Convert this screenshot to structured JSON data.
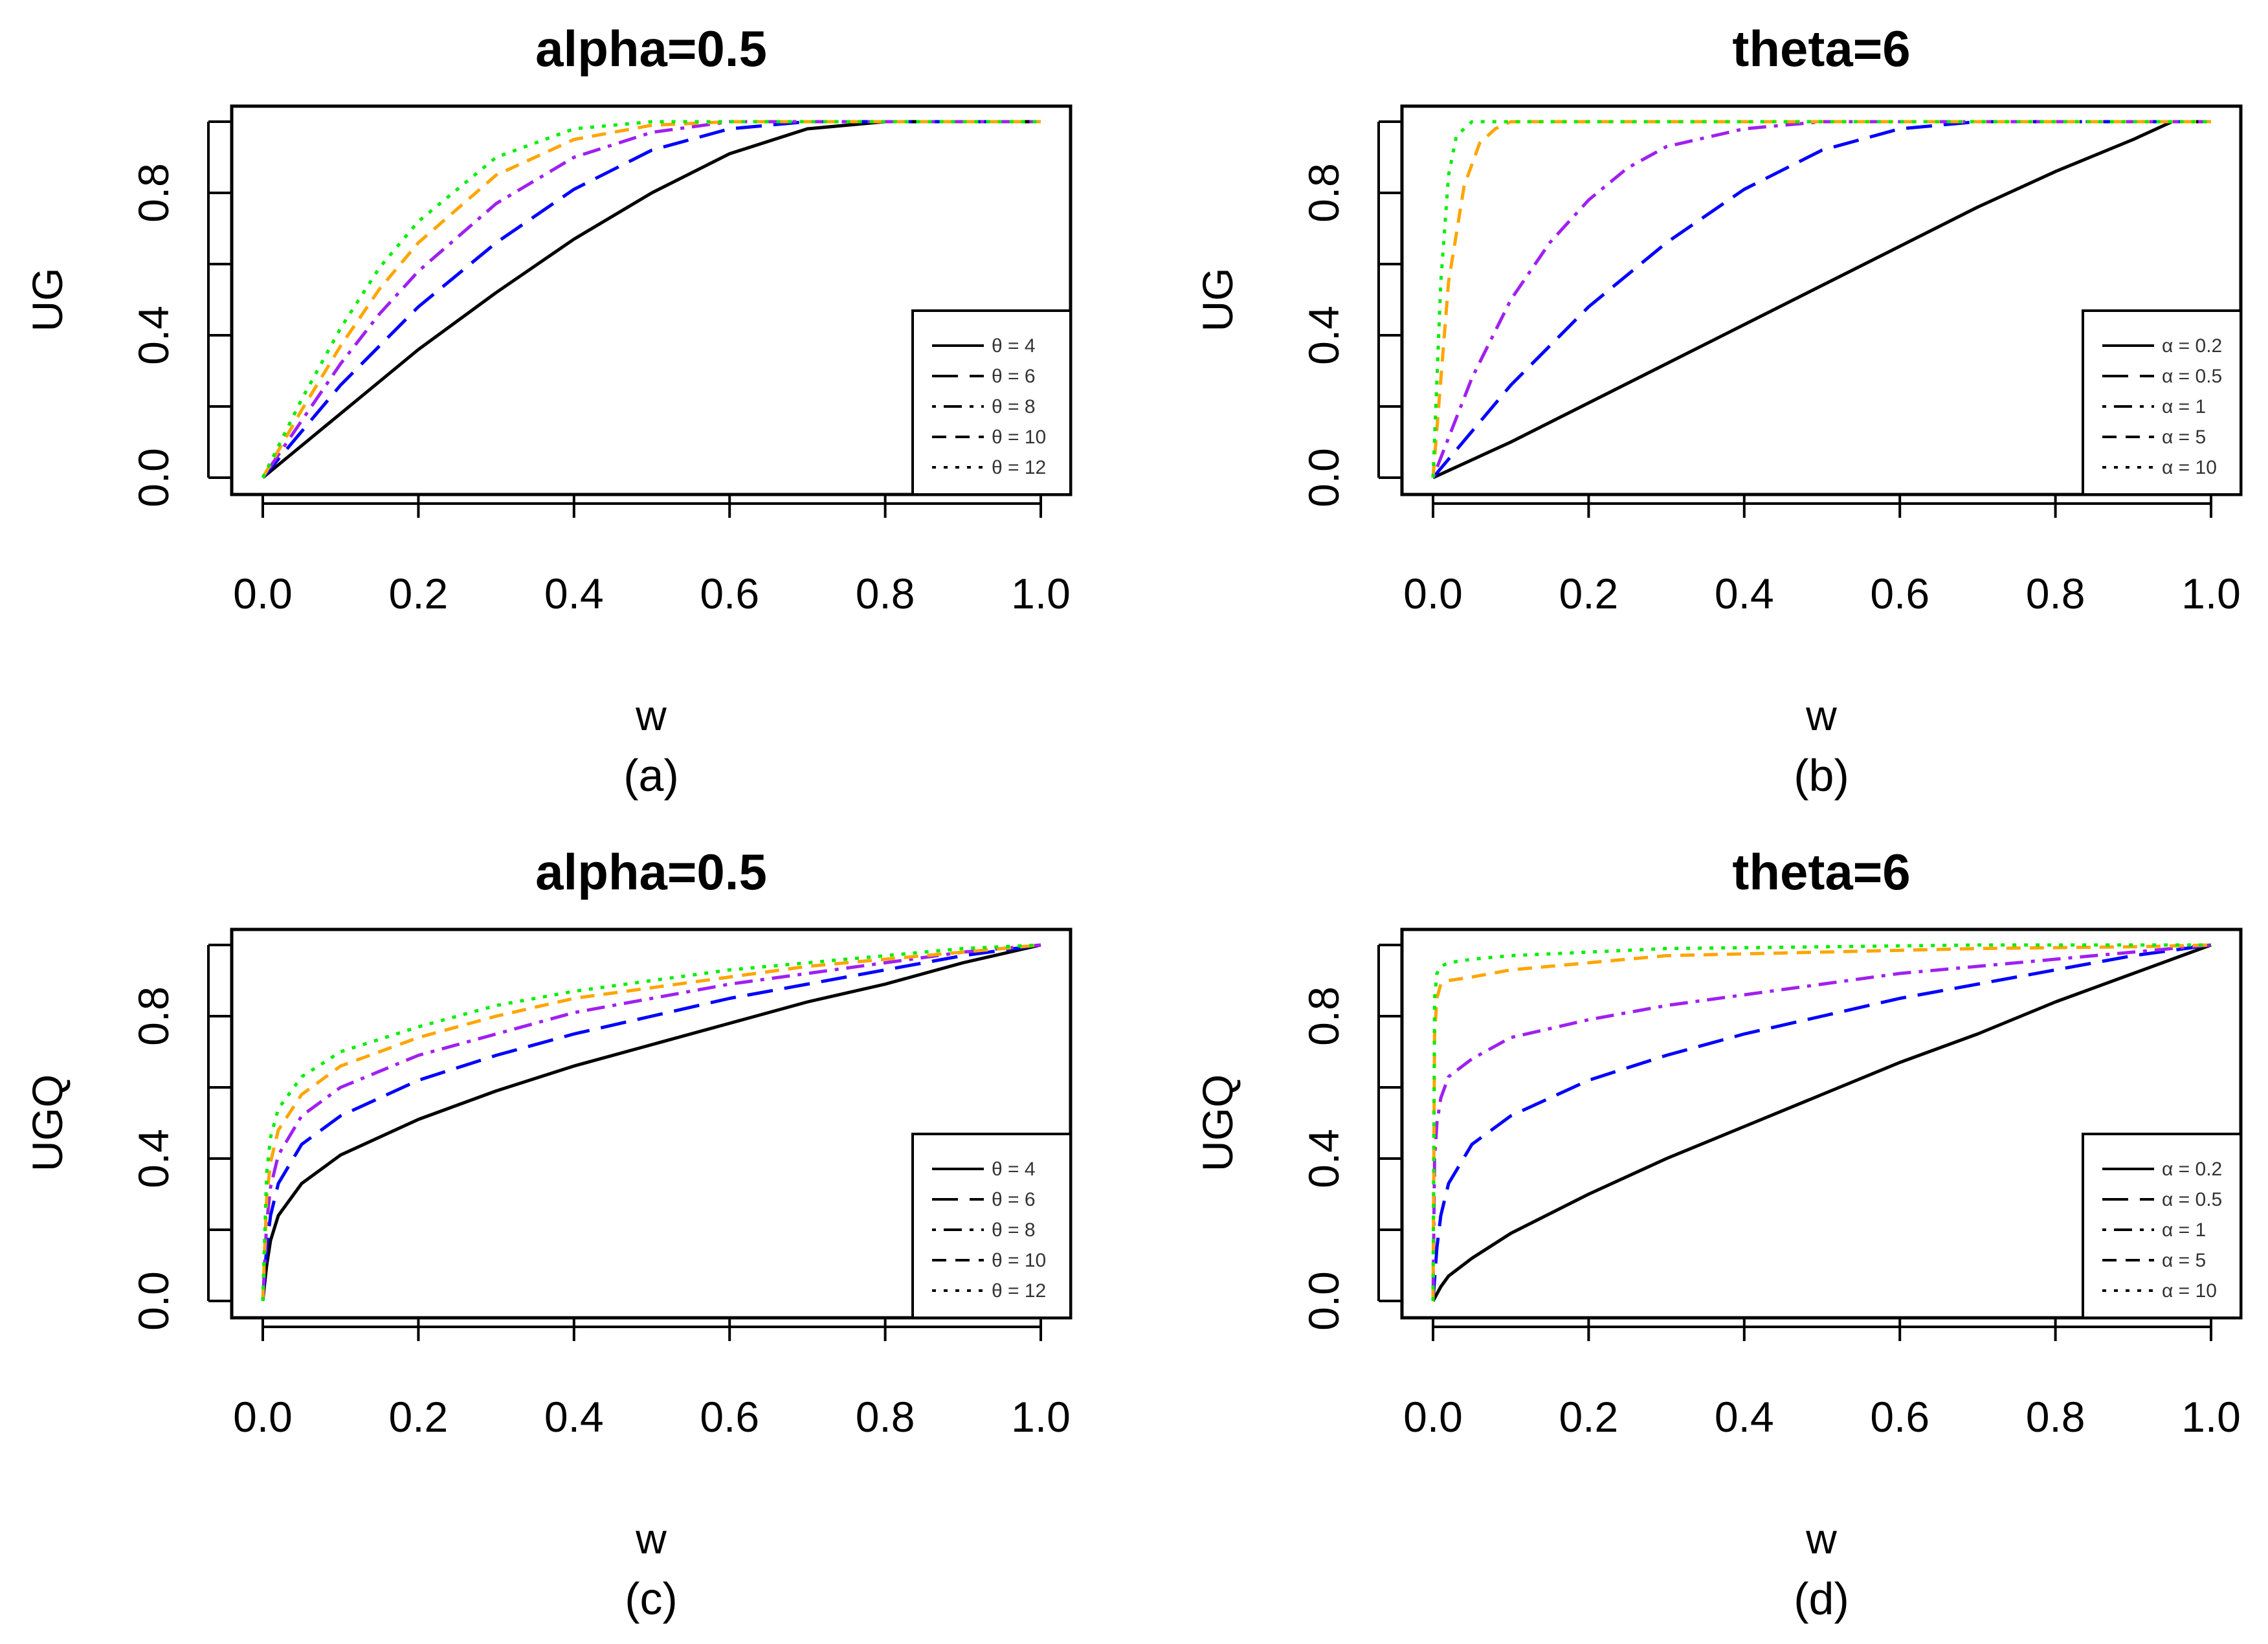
{
  "chart_data": [
    {
      "id": "a",
      "type": "line",
      "title": "alpha=0.5",
      "xlabel": "w",
      "ylabel": "UG",
      "caption": "(a)",
      "xlim": [
        0,
        1
      ],
      "ylim": [
        0,
        1
      ],
      "xticks": [
        "0.0",
        "0.2",
        "0.4",
        "0.6",
        "0.8",
        "1.0"
      ],
      "yticks": [
        "0.0",
        "0.4",
        "0.8"
      ],
      "legend_position": "bottom-right",
      "series": [
        {
          "name": "θ = 4",
          "color": "#000000",
          "dash": "solid",
          "x": [
            0,
            0.05,
            0.1,
            0.15,
            0.2,
            0.3,
            0.4,
            0.5,
            0.6,
            0.7,
            0.8,
            0.9,
            1.0
          ],
          "y": [
            0,
            0.09,
            0.18,
            0.27,
            0.36,
            0.52,
            0.67,
            0.8,
            0.91,
            0.98,
            1.0,
            1.0,
            1.0
          ]
        },
        {
          "name": "θ = 6",
          "color": "#0000ff",
          "dash": "longdash",
          "x": [
            0,
            0.05,
            0.1,
            0.15,
            0.2,
            0.3,
            0.4,
            0.5,
            0.6,
            0.7,
            0.8,
            0.9,
            1.0
          ],
          "y": [
            0,
            0.13,
            0.26,
            0.37,
            0.48,
            0.66,
            0.81,
            0.92,
            0.98,
            1.0,
            1.0,
            1.0,
            1.0
          ]
        },
        {
          "name": "θ = 8",
          "color": "#a020f0",
          "dash": "dotdash",
          "x": [
            0,
            0.05,
            0.1,
            0.15,
            0.2,
            0.3,
            0.4,
            0.5,
            0.6,
            0.7,
            0.8,
            0.9,
            1.0
          ],
          "y": [
            0,
            0.16,
            0.32,
            0.46,
            0.58,
            0.77,
            0.9,
            0.97,
            1.0,
            1.0,
            1.0,
            1.0,
            1.0
          ]
        },
        {
          "name": "θ = 10",
          "color": "#ffa500",
          "dash": "dashed",
          "x": [
            0,
            0.05,
            0.1,
            0.15,
            0.2,
            0.3,
            0.4,
            0.5,
            0.6,
            0.7,
            0.8,
            0.9,
            1.0
          ],
          "y": [
            0,
            0.19,
            0.37,
            0.53,
            0.66,
            0.85,
            0.95,
            0.99,
            1.0,
            1.0,
            1.0,
            1.0,
            1.0
          ]
        },
        {
          "name": "θ = 12",
          "color": "#00ee00",
          "dash": "dotted",
          "x": [
            0,
            0.05,
            0.1,
            0.15,
            0.2,
            0.3,
            0.4,
            0.5,
            0.6,
            0.7,
            0.8,
            0.9,
            1.0
          ],
          "y": [
            0,
            0.22,
            0.42,
            0.59,
            0.72,
            0.9,
            0.98,
            1.0,
            1.0,
            1.0,
            1.0,
            1.0,
            1.0
          ]
        }
      ]
    },
    {
      "id": "b",
      "type": "line",
      "title": "theta=6",
      "xlabel": "w",
      "ylabel": "UG",
      "caption": "(b)",
      "xlim": [
        0,
        1
      ],
      "ylim": [
        0,
        1
      ],
      "xticks": [
        "0.0",
        "0.2",
        "0.4",
        "0.6",
        "0.8",
        "1.0"
      ],
      "yticks": [
        "0.0",
        "0.4",
        "0.8"
      ],
      "legend_position": "bottom-right",
      "series": [
        {
          "name": "α = 0.2",
          "color": "#000000",
          "dash": "solid",
          "x": [
            0,
            0.1,
            0.2,
            0.3,
            0.4,
            0.5,
            0.6,
            0.7,
            0.8,
            0.9,
            0.95,
            1.0
          ],
          "y": [
            0,
            0.1,
            0.21,
            0.32,
            0.43,
            0.54,
            0.65,
            0.76,
            0.86,
            0.95,
            1.0,
            1.0
          ]
        },
        {
          "name": "α = 0.5",
          "color": "#0000ff",
          "dash": "longdash",
          "x": [
            0,
            0.05,
            0.1,
            0.15,
            0.2,
            0.3,
            0.4,
            0.5,
            0.6,
            0.7,
            0.8,
            0.9,
            1.0
          ],
          "y": [
            0,
            0.13,
            0.26,
            0.37,
            0.48,
            0.66,
            0.81,
            0.92,
            0.98,
            1.0,
            1.0,
            1.0,
            1.0
          ]
        },
        {
          "name": "α = 1",
          "color": "#a020f0",
          "dash": "dotdash",
          "x": [
            0,
            0.05,
            0.1,
            0.15,
            0.2,
            0.25,
            0.3,
            0.4,
            0.5,
            0.6,
            0.8,
            1.0
          ],
          "y": [
            0,
            0.28,
            0.5,
            0.66,
            0.78,
            0.87,
            0.93,
            0.98,
            1.0,
            1.0,
            1.0,
            1.0
          ]
        },
        {
          "name": "α = 5",
          "color": "#ffa500",
          "dash": "dashed",
          "x": [
            0,
            0.02,
            0.04,
            0.06,
            0.08,
            0.1,
            0.2,
            0.5,
            1.0
          ],
          "y": [
            0,
            0.55,
            0.82,
            0.94,
            0.98,
            1.0,
            1.0,
            1.0,
            1.0
          ]
        },
        {
          "name": "α = 10",
          "color": "#00ee00",
          "dash": "dotted",
          "x": [
            0,
            0.01,
            0.02,
            0.03,
            0.05,
            0.1,
            0.5,
            1.0
          ],
          "y": [
            0,
            0.55,
            0.85,
            0.96,
            1.0,
            1.0,
            1.0,
            1.0
          ]
        }
      ]
    },
    {
      "id": "c",
      "type": "line",
      "title": "alpha=0.5",
      "xlabel": "w",
      "ylabel": "UGQ",
      "caption": "(c)",
      "xlim": [
        0,
        1
      ],
      "ylim": [
        0,
        1
      ],
      "xticks": [
        "0.0",
        "0.2",
        "0.4",
        "0.6",
        "0.8",
        "1.0"
      ],
      "yticks": [
        "0.0",
        "0.4",
        "0.8"
      ],
      "legend_position": "bottom-right",
      "series": [
        {
          "name": "θ = 4",
          "color": "#000000",
          "dash": "solid",
          "x": [
            0,
            0.005,
            0.01,
            0.02,
            0.05,
            0.1,
            0.2,
            0.3,
            0.4,
            0.5,
            0.6,
            0.7,
            0.8,
            0.9,
            1.0
          ],
          "y": [
            0,
            0.1,
            0.17,
            0.24,
            0.33,
            0.41,
            0.51,
            0.59,
            0.66,
            0.72,
            0.78,
            0.84,
            0.89,
            0.95,
            1.0
          ]
        },
        {
          "name": "θ = 6",
          "color": "#0000ff",
          "dash": "longdash",
          "x": [
            0,
            0.005,
            0.01,
            0.02,
            0.05,
            0.1,
            0.2,
            0.3,
            0.4,
            0.5,
            0.6,
            0.7,
            0.8,
            0.9,
            1.0
          ],
          "y": [
            0,
            0.15,
            0.24,
            0.33,
            0.44,
            0.52,
            0.62,
            0.69,
            0.75,
            0.8,
            0.85,
            0.89,
            0.93,
            0.97,
            1.0
          ]
        },
        {
          "name": "θ = 8",
          "color": "#a020f0",
          "dash": "dotdash",
          "x": [
            0,
            0.005,
            0.01,
            0.02,
            0.05,
            0.1,
            0.2,
            0.3,
            0.4,
            0.5,
            0.6,
            0.7,
            0.8,
            0.9,
            1.0
          ],
          "y": [
            0,
            0.22,
            0.32,
            0.41,
            0.52,
            0.6,
            0.69,
            0.75,
            0.81,
            0.85,
            0.89,
            0.92,
            0.95,
            0.98,
            1.0
          ]
        },
        {
          "name": "θ = 10",
          "color": "#ffa500",
          "dash": "dashed",
          "x": [
            0,
            0.005,
            0.01,
            0.02,
            0.05,
            0.1,
            0.2,
            0.3,
            0.4,
            0.5,
            0.6,
            0.7,
            0.8,
            0.9,
            1.0
          ],
          "y": [
            0,
            0.29,
            0.39,
            0.48,
            0.58,
            0.66,
            0.74,
            0.8,
            0.85,
            0.88,
            0.91,
            0.94,
            0.96,
            0.98,
            1.0
          ]
        },
        {
          "name": "θ = 12",
          "color": "#00ee00",
          "dash": "dotted",
          "x": [
            0,
            0.005,
            0.01,
            0.02,
            0.05,
            0.1,
            0.2,
            0.3,
            0.4,
            0.5,
            0.6,
            0.7,
            0.8,
            0.9,
            1.0
          ],
          "y": [
            0,
            0.36,
            0.46,
            0.54,
            0.63,
            0.7,
            0.77,
            0.83,
            0.87,
            0.9,
            0.93,
            0.95,
            0.97,
            0.99,
            1.0
          ]
        }
      ]
    },
    {
      "id": "d",
      "type": "line",
      "title": "theta=6",
      "xlabel": "w",
      "ylabel": "UGQ",
      "caption": "(d)",
      "xlim": [
        0,
        1
      ],
      "ylim": [
        0,
        1
      ],
      "xticks": [
        "0.0",
        "0.2",
        "0.4",
        "0.6",
        "0.8",
        "1.0"
      ],
      "yticks": [
        "0.0",
        "0.4",
        "0.8"
      ],
      "legend_position": "bottom-right",
      "series": [
        {
          "name": "α = 0.2",
          "color": "#000000",
          "dash": "solid",
          "x": [
            0,
            0.01,
            0.02,
            0.05,
            0.1,
            0.2,
            0.3,
            0.4,
            0.5,
            0.6,
            0.7,
            0.8,
            0.9,
            1.0
          ],
          "y": [
            0,
            0.04,
            0.07,
            0.12,
            0.19,
            0.3,
            0.4,
            0.49,
            0.58,
            0.67,
            0.75,
            0.84,
            0.92,
            1.0
          ]
        },
        {
          "name": "α = 0.5",
          "color": "#0000ff",
          "dash": "longdash",
          "x": [
            0,
            0.005,
            0.01,
            0.02,
            0.05,
            0.1,
            0.2,
            0.3,
            0.4,
            0.5,
            0.6,
            0.7,
            0.8,
            0.9,
            1.0
          ],
          "y": [
            0,
            0.15,
            0.24,
            0.33,
            0.44,
            0.52,
            0.62,
            0.69,
            0.75,
            0.8,
            0.85,
            0.89,
            0.93,
            0.97,
            1.0
          ]
        },
        {
          "name": "α = 1",
          "color": "#a020f0",
          "dash": "dotdash",
          "x": [
            0,
            0.002,
            0.005,
            0.01,
            0.02,
            0.05,
            0.1,
            0.2,
            0.3,
            0.4,
            0.5,
            0.6,
            0.7,
            0.8,
            0.9,
            1.0
          ],
          "y": [
            0,
            0.4,
            0.5,
            0.57,
            0.63,
            0.68,
            0.74,
            0.79,
            0.83,
            0.86,
            0.89,
            0.92,
            0.94,
            0.96,
            0.98,
            1.0
          ]
        },
        {
          "name": "α = 5",
          "color": "#ffa500",
          "dash": "dashed",
          "x": [
            0,
            0.002,
            0.005,
            0.01,
            0.02,
            0.05,
            0.1,
            0.2,
            0.3,
            0.5,
            0.7,
            0.9,
            1.0
          ],
          "y": [
            0,
            0.75,
            0.85,
            0.89,
            0.9,
            0.91,
            0.93,
            0.95,
            0.97,
            0.98,
            0.99,
            0.995,
            1.0
          ]
        },
        {
          "name": "α = 10",
          "color": "#00ee00",
          "dash": "dotted",
          "x": [
            0,
            0.002,
            0.005,
            0.01,
            0.02,
            0.05,
            0.1,
            0.2,
            0.3,
            0.5,
            0.7,
            0.9,
            1.0
          ],
          "y": [
            0,
            0.85,
            0.92,
            0.94,
            0.95,
            0.96,
            0.97,
            0.98,
            0.99,
            0.995,
            1.0,
            1.0,
            1.0
          ]
        }
      ]
    }
  ]
}
